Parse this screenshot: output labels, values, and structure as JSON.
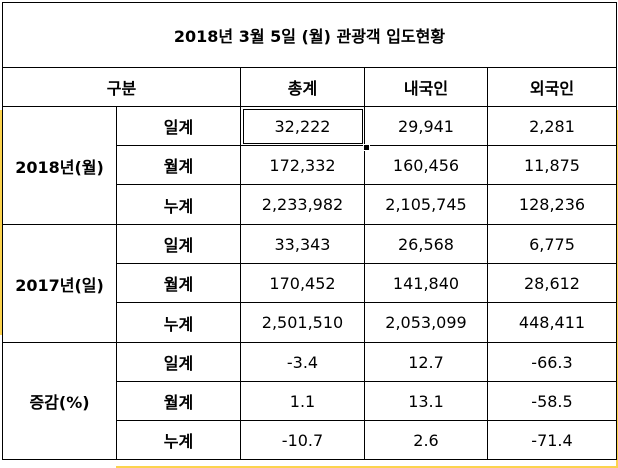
{
  "title": "2018년 3월 5일 (월) 관광객 입도현황",
  "header": {
    "category": "구분",
    "total": "총계",
    "domestic": "내국인",
    "foreign": "외국인"
  },
  "groups": [
    {
      "label": "2018년(월)",
      "rows": [
        {
          "label": "일계",
          "total": "32,222",
          "domestic": "29,941",
          "foreign": "2,281"
        },
        {
          "label": "월계",
          "total": "172,332",
          "domestic": "160,456",
          "foreign": "11,875"
        },
        {
          "label": "누계",
          "total": "2,233,982",
          "domestic": "2,105,745",
          "foreign": "128,236"
        }
      ]
    },
    {
      "label": "2017년(일)",
      "rows": [
        {
          "label": "일계",
          "total": "33,343",
          "domestic": "26,568",
          "foreign": "6,775"
        },
        {
          "label": "월계",
          "total": "170,452",
          "domestic": "141,840",
          "foreign": "28,612"
        },
        {
          "label": "누계",
          "total": "2,501,510",
          "domestic": "2,053,099",
          "foreign": "448,411"
        }
      ]
    },
    {
      "label": "증감(%)",
      "rows": [
        {
          "label": "일계",
          "total": "-3.4",
          "domestic": "12.7",
          "foreign": "-66.3"
        },
        {
          "label": "월계",
          "total": "1.1",
          "domestic": "13.1",
          "foreign": "-58.5"
        },
        {
          "label": "누계",
          "total": "-10.7",
          "domestic": "2.6",
          "foreign": "-71.4"
        }
      ]
    }
  ],
  "colors": {
    "grid_line": "#000000",
    "background": "#ffffff",
    "edge_highlight": "#fcd34d"
  }
}
